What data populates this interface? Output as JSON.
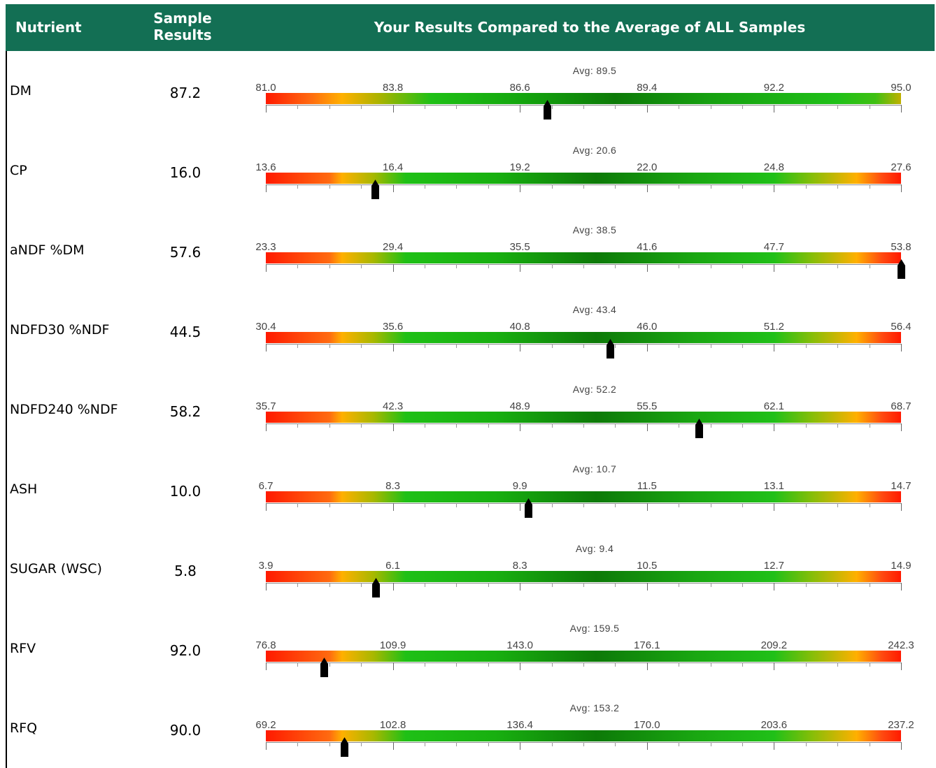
{
  "header": {
    "nutrient": "Nutrient",
    "sample_line1": "Sample",
    "sample_line2": "Results",
    "compare": "Your Results Compared to the Average of ALL Samples"
  },
  "colors": {
    "header_bg": "#136f54",
    "marker": "#000000"
  },
  "rows": [
    {
      "nutrient": "DM",
      "value": "87.2",
      "avg_label": "Avg: 89.5",
      "ticks": [
        "81.0",
        "83.8",
        "86.6",
        "89.4",
        "92.2",
        "95.0"
      ],
      "min": 81.0,
      "max": 95.0,
      "marker_value": 87.2,
      "gradient": "dm"
    },
    {
      "nutrient": "CP",
      "value": "16.0",
      "avg_label": "Avg: 20.6",
      "ticks": [
        "13.6",
        "16.4",
        "19.2",
        "22.0",
        "24.8",
        "27.6"
      ],
      "min": 13.6,
      "max": 27.6,
      "marker_value": 16.0,
      "gradient": "mid"
    },
    {
      "nutrient": "aNDF %DM",
      "value": "57.6",
      "avg_label": "Avg: 38.5",
      "ticks": [
        "23.3",
        "29.4",
        "35.5",
        "41.6",
        "47.7",
        "53.8"
      ],
      "min": 23.3,
      "max": 53.8,
      "marker_value": 53.8,
      "gradient": "mid"
    },
    {
      "nutrient": "NDFD30 %NDF",
      "value": "44.5",
      "avg_label": "Avg: 43.4",
      "ticks": [
        "30.4",
        "35.6",
        "40.8",
        "46.0",
        "51.2",
        "56.4"
      ],
      "min": 30.4,
      "max": 56.4,
      "marker_value": 44.5,
      "gradient": "mid"
    },
    {
      "nutrient": "NDFD240 %NDF",
      "value": "58.2",
      "avg_label": "Avg: 52.2",
      "ticks": [
        "35.7",
        "42.3",
        "48.9",
        "55.5",
        "62.1",
        "68.7"
      ],
      "min": 35.7,
      "max": 68.7,
      "marker_value": 58.2,
      "gradient": "mid"
    },
    {
      "nutrient": "ASH",
      "value": "10.0",
      "avg_label": "Avg: 10.7",
      "ticks": [
        "6.7",
        "8.3",
        "9.9",
        "11.5",
        "13.1",
        "14.7"
      ],
      "min": 6.7,
      "max": 14.7,
      "marker_value": 10.0,
      "gradient": "mid"
    },
    {
      "nutrient": "SUGAR (WSC)",
      "value": "5.8",
      "avg_label": "Avg: 9.4",
      "ticks": [
        "3.9",
        "6.1",
        "8.3",
        "10.5",
        "12.7",
        "14.9"
      ],
      "min": 3.9,
      "max": 14.9,
      "marker_value": 5.8,
      "gradient": "mid"
    },
    {
      "nutrient": "RFV",
      "value": "92.0",
      "avg_label": "Avg: 159.5",
      "ticks": [
        "76.8",
        "109.9",
        "143.0",
        "176.1",
        "209.2",
        "242.3"
      ],
      "min": 76.8,
      "max": 242.3,
      "marker_value": 92.0,
      "gradient": "mid"
    },
    {
      "nutrient": "RFQ",
      "value": "90.0",
      "avg_label": "Avg: 153.2",
      "ticks": [
        "69.2",
        "102.8",
        "136.4",
        "170.0",
        "203.6",
        "237.2"
      ],
      "min": 69.2,
      "max": 237.2,
      "marker_value": 90.0,
      "gradient": "mid"
    }
  ]
}
